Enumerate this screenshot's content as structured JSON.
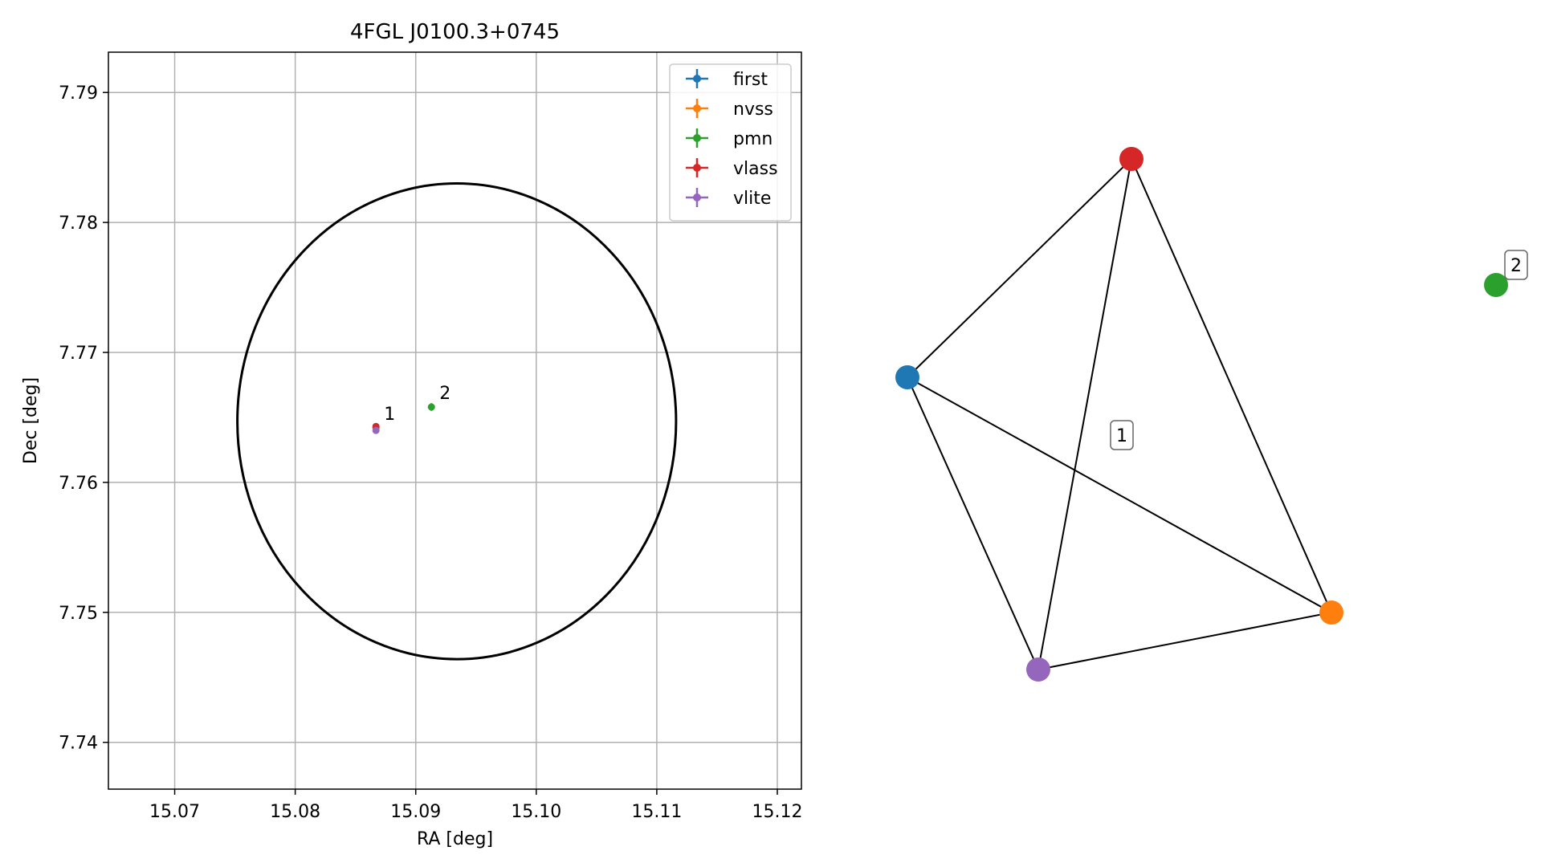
{
  "chart_data": [
    {
      "type": "scatter",
      "title": "4FGL J0100.3+0745",
      "xlabel": "RA [deg]",
      "ylabel": "Dec [deg]",
      "xlim": [
        15.0645,
        15.122
      ],
      "ylim": [
        7.7364,
        7.7931
      ],
      "xticks": [
        15.07,
        15.08,
        15.09,
        15.1,
        15.11,
        15.12
      ],
      "xtick_labels": [
        "15.07",
        "15.08",
        "15.09",
        "15.10",
        "15.11",
        "15.12"
      ],
      "yticks": [
        7.74,
        7.75,
        7.76,
        7.77,
        7.78,
        7.79
      ],
      "ytick_labels": [
        "7.74",
        "7.75",
        "7.76",
        "7.77",
        "7.78",
        "7.79"
      ],
      "grid": true,
      "legend_position": "top-right",
      "series": [
        {
          "name": "first",
          "color": "#1f77b4",
          "points": [
            {
              "x": 15.0867,
              "y": 7.7642,
              "xerr": 0.0001,
              "yerr": 0.0001
            }
          ]
        },
        {
          "name": "nvss",
          "color": "#ff7f0e",
          "points": [
            {
              "x": 15.0867,
              "y": 7.7642,
              "xerr": 0.0001,
              "yerr": 0.0001
            }
          ]
        },
        {
          "name": "pmn",
          "color": "#2ca02c",
          "points": [
            {
              "x": 15.0913,
              "y": 7.7658,
              "xerr": 0.0001,
              "yerr": 0.0003
            }
          ]
        },
        {
          "name": "vlass",
          "color": "#d62728",
          "points": [
            {
              "x": 15.0867,
              "y": 7.7643,
              "xerr": 0.0001,
              "yerr": 0.0001
            }
          ]
        },
        {
          "name": "vlite",
          "color": "#9467bd",
          "points": [
            {
              "x": 15.0867,
              "y": 7.764,
              "xerr": 0.0001,
              "yerr": 0.0002
            }
          ]
        }
      ],
      "annotations": [
        {
          "text": "1",
          "x": 15.0867,
          "y": 7.7642
        },
        {
          "text": "2",
          "x": 15.0913,
          "y": 7.7658
        }
      ],
      "ellipse": {
        "center_x": 15.0934,
        "center_y": 7.7647,
        "radius_x": 0.0182,
        "radius_y": 0.0183,
        "color": "#000000"
      }
    },
    {
      "type": "network",
      "nodes": [
        {
          "id": "first",
          "color": "#1f77b4"
        },
        {
          "id": "vlass",
          "color": "#d62728"
        },
        {
          "id": "nvss",
          "color": "#ff7f0e"
        },
        {
          "id": "vlite",
          "color": "#9467bd"
        },
        {
          "id": "pmn",
          "color": "#2ca02c"
        }
      ],
      "edges": [
        [
          "first",
          "vlass"
        ],
        [
          "first",
          "vlite"
        ],
        [
          "first",
          "nvss"
        ],
        [
          "vlass",
          "vlite"
        ],
        [
          "vlass",
          "nvss"
        ],
        [
          "vlite",
          "nvss"
        ]
      ],
      "group_labels": [
        {
          "text": "1",
          "members": [
            "first",
            "vlass",
            "nvss",
            "vlite"
          ]
        },
        {
          "text": "2",
          "members": [
            "pmn"
          ]
        }
      ]
    }
  ]
}
